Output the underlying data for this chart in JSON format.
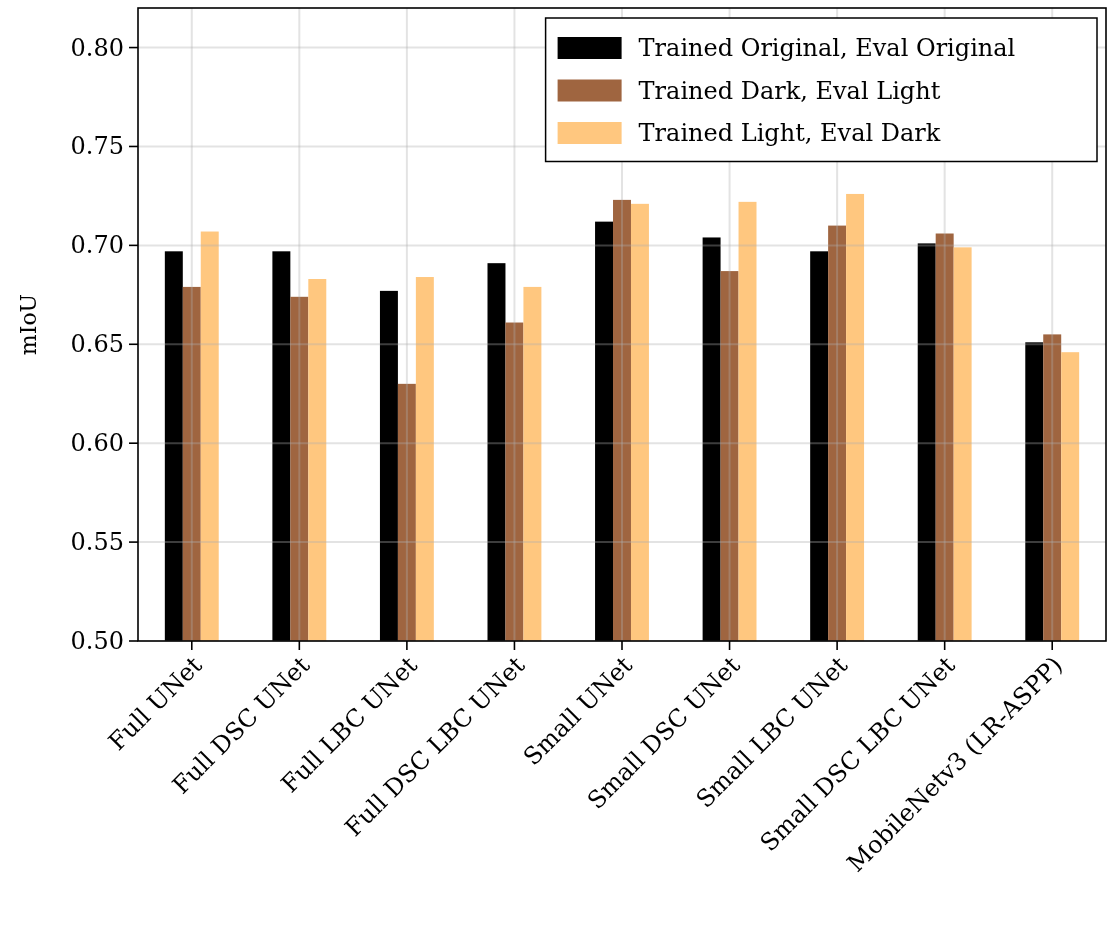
{
  "chart_data": {
    "type": "bar",
    "ylabel": "mIoU",
    "categories": [
      "Full UNet",
      "Full DSC UNet",
      "Full LBC UNet",
      "Full DSC LBC UNet",
      "Small UNet",
      "Small DSC UNet",
      "Small LBC UNet",
      "Small DSC LBC UNet",
      "MobileNetv3 (LR-ASPP)"
    ],
    "series": [
      {
        "name": "Trained Original, Eval Original",
        "color": "#000000",
        "values": [
          0.697,
          0.697,
          0.677,
          0.691,
          0.712,
          0.704,
          0.697,
          0.701,
          0.651
        ]
      },
      {
        "name": "Trained Dark, Eval Light",
        "color": "#9f6540",
        "values": [
          0.679,
          0.674,
          0.63,
          0.661,
          0.723,
          0.687,
          0.71,
          0.706,
          0.655
        ]
      },
      {
        "name": "Trained Light, Eval Dark",
        "color": "#ffc77f",
        "values": [
          0.707,
          0.683,
          0.684,
          0.679,
          0.721,
          0.722,
          0.726,
          0.699,
          0.646
        ]
      }
    ],
    "ylim": [
      0.5,
      0.82
    ],
    "yticks": [
      {
        "value": 0.5,
        "label": "0.50"
      },
      0.55,
      {
        "value": 0.6,
        "label": "0.60"
      },
      0.65,
      {
        "value": 0.7,
        "label": "0.70"
      },
      0.75,
      {
        "value": 0.8,
        "label": "0.80"
      }
    ],
    "grid": true,
    "legend": "top right"
  }
}
